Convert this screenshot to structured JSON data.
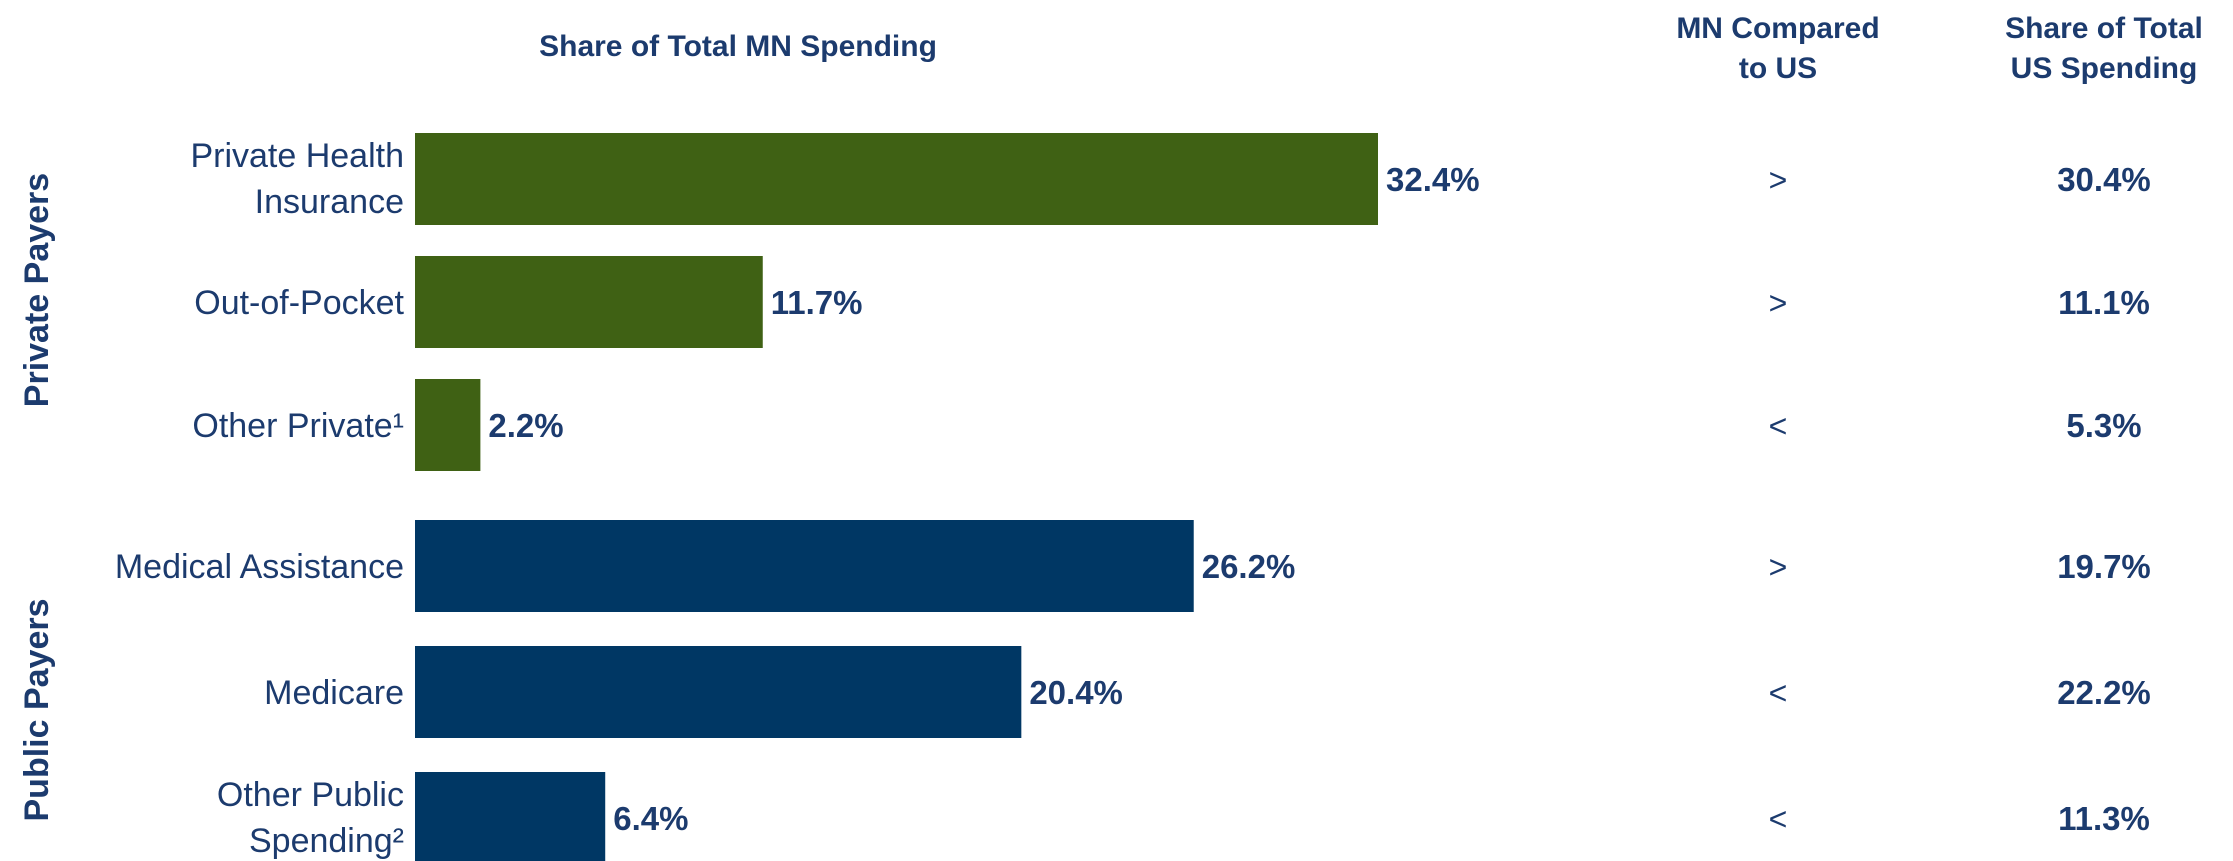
{
  "chart_data": {
    "type": "bar",
    "orientation": "horizontal",
    "title": "Share of Total MN Spending",
    "comparison_header": "MN Compared to US",
    "us_header": "Share of Total US Spending",
    "groups": [
      {
        "name": "Private Payers",
        "color": "#3f6114",
        "items": [
          {
            "label": [
              "Private Health",
              "Insurance"
            ],
            "value": 32.4,
            "value_label": "32.4%",
            "comparison": ">",
            "us_value": 30.4,
            "us_label": "30.4%"
          },
          {
            "label": [
              "Out-of-Pocket"
            ],
            "value": 11.7,
            "value_label": "11.7%",
            "comparison": ">",
            "us_value": 11.1,
            "us_label": "11.1%"
          },
          {
            "label": [
              "Other Private¹"
            ],
            "value": 2.2,
            "value_label": "2.2%",
            "comparison": "<",
            "us_value": 5.3,
            "us_label": "5.3%"
          }
        ]
      },
      {
        "name": "Public Payers",
        "color": "#003764",
        "items": [
          {
            "label": [
              "Medical Assistance"
            ],
            "value": 26.2,
            "value_label": "26.2%",
            "comparison": ">",
            "us_value": 19.7,
            "us_label": "19.7%"
          },
          {
            "label": [
              "Medicare"
            ],
            "value": 20.4,
            "value_label": "20.4%",
            "comparison": "<",
            "us_value": 22.2,
            "us_label": "22.2%"
          },
          {
            "label": [
              "Other Public",
              "Spending²"
            ],
            "value": 6.4,
            "value_label": "6.4%",
            "comparison": "<",
            "us_value": 11.3,
            "us_label": "11.3%"
          }
        ]
      }
    ],
    "grid": false,
    "legend": "none"
  }
}
